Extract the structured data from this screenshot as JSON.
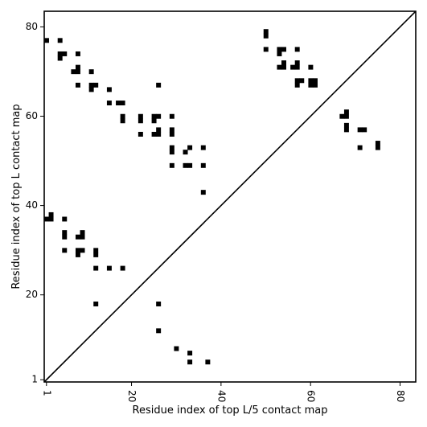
{
  "chart_data": {
    "type": "heatmap",
    "title": "",
    "xlabel": "Residue index of top L/5 contact map",
    "ylabel": "Residue index of top L contact map",
    "xlim": [
      0.5,
      83.5
    ],
    "ylim": [
      0.5,
      83.5
    ],
    "x_ticks": [
      1,
      20,
      40,
      60,
      80
    ],
    "y_ticks": [
      1,
      20,
      40,
      60,
      80
    ],
    "x_tick_labels": [
      "1",
      "20",
      "40",
      "60",
      "80"
    ],
    "y_tick_labels": [
      "1",
      "20",
      "40",
      "60",
      "80"
    ],
    "grid": false,
    "diagonal_line": true,
    "contact_color": "#000000",
    "background_color": "#ffffff",
    "upper_contacts": [
      [
        1,
        77
      ],
      [
        4,
        77
      ],
      [
        4,
        73
      ],
      [
        4,
        74
      ],
      [
        5,
        74
      ],
      [
        8,
        74
      ],
      [
        7,
        70
      ],
      [
        8,
        70
      ],
      [
        8,
        71
      ],
      [
        11,
        70
      ],
      [
        8,
        67
      ],
      [
        11,
        67
      ],
      [
        12,
        67
      ],
      [
        11,
        66
      ],
      [
        15,
        66
      ],
      [
        15,
        63
      ],
      [
        17,
        63
      ],
      [
        18,
        63
      ],
      [
        18,
        60
      ],
      [
        18,
        59
      ],
      [
        22,
        60
      ],
      [
        22,
        59
      ],
      [
        22,
        56
      ],
      [
        25,
        60
      ],
      [
        26,
        60
      ],
      [
        25,
        59
      ],
      [
        26,
        67
      ],
      [
        25,
        56
      ],
      [
        26,
        56
      ],
      [
        26,
        57
      ],
      [
        29,
        60
      ],
      [
        29,
        57
      ],
      [
        29,
        56
      ],
      [
        29,
        53
      ],
      [
        29,
        52
      ],
      [
        29,
        49
      ],
      [
        32,
        52
      ],
      [
        33,
        53
      ],
      [
        32,
        49
      ],
      [
        33,
        49
      ],
      [
        36,
        53
      ],
      [
        36,
        49
      ],
      [
        36,
        43
      ],
      [
        50,
        79
      ],
      [
        50,
        78
      ],
      [
        50,
        75
      ],
      [
        53,
        75
      ],
      [
        54,
        75
      ],
      [
        53,
        74
      ],
      [
        53,
        71
      ],
      [
        54,
        71
      ],
      [
        54,
        72
      ],
      [
        57,
        75
      ],
      [
        56,
        71
      ],
      [
        57,
        71
      ],
      [
        57,
        72
      ],
      [
        57,
        68
      ],
      [
        58,
        68
      ],
      [
        57,
        67
      ],
      [
        60,
        71
      ],
      [
        60,
        68
      ],
      [
        61,
        68
      ],
      [
        60,
        67
      ],
      [
        61,
        67
      ],
      [
        67,
        60
      ],
      [
        68,
        60
      ],
      [
        68,
        61
      ],
      [
        68,
        58
      ],
      [
        68,
        57
      ],
      [
        71,
        57
      ],
      [
        72,
        57
      ],
      [
        71,
        53
      ],
      [
        75,
        54
      ],
      [
        75,
        53
      ]
    ],
    "lower_contacts": [
      [
        1,
        37
      ],
      [
        2,
        37
      ],
      [
        2,
        38
      ],
      [
        5,
        37
      ],
      [
        5,
        34
      ],
      [
        5,
        33
      ],
      [
        8,
        33
      ],
      [
        9,
        33
      ],
      [
        9,
        34
      ],
      [
        5,
        30
      ],
      [
        8,
        30
      ],
      [
        9,
        30
      ],
      [
        8,
        29
      ],
      [
        12,
        30
      ],
      [
        12,
        29
      ],
      [
        12,
        26
      ],
      [
        15,
        26
      ],
      [
        18,
        26
      ],
      [
        12,
        18
      ],
      [
        26,
        18
      ],
      [
        26,
        12
      ],
      [
        30,
        8
      ],
      [
        33,
        7
      ],
      [
        33,
        5
      ],
      [
        37,
        5
      ]
    ]
  }
}
